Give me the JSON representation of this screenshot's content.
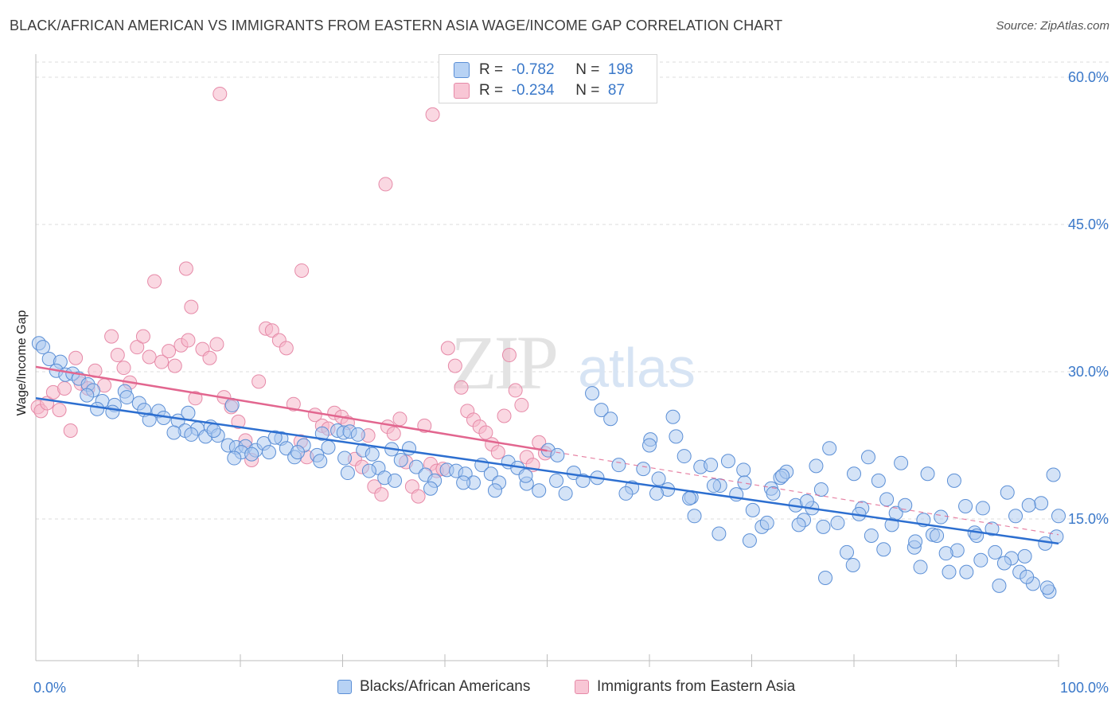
{
  "title": "BLACK/AFRICAN AMERICAN VS IMMIGRANTS FROM EASTERN ASIA WAGE/INCOME GAP CORRELATION CHART",
  "source": "Source: ZipAtlas.com",
  "watermark": {
    "zip": "ZIP",
    "atlas": "atlas"
  },
  "legend_box": {
    "rows": [
      {
        "r_label": "R =",
        "r_value": "-0.782",
        "n_label": "N =",
        "n_value": "198"
      },
      {
        "r_label": "R =",
        "r_value": "-0.234",
        "n_label": "N =",
        "n_value": "87"
      }
    ]
  },
  "bottom_legend": {
    "series1": "Blacks/African Americans",
    "series2": "Immigrants from Eastern Asia"
  },
  "colors": {
    "blue_fill": "#a9c8f0",
    "blue_stroke": "#5b8fd6",
    "blue_line": "#2d6fd0",
    "pink_fill": "#f6b8cb",
    "pink_stroke": "#e68aa8",
    "pink_line": "#e2668f",
    "axis_text_blue": "#3a78c9"
  },
  "chart_data": {
    "type": "scatter",
    "title": "BLACK/AFRICAN AMERICAN VS IMMIGRANTS FROM EASTERN ASIA WAGE/INCOME GAP CORRELATION CHART",
    "xlabel": "",
    "ylabel": "Wage/Income Gap",
    "xlim": [
      0,
      100
    ],
    "ylim": [
      0,
      62
    ],
    "x_tick_labels": [
      "0.0%",
      "100.0%"
    ],
    "y_ticks": [
      15,
      30,
      45,
      60
    ],
    "y_tick_labels": [
      "15.0%",
      "30.0%",
      "45.0%",
      "60.0%"
    ],
    "grid": "horizontal dashed",
    "series": [
      {
        "name": "Blacks/African Americans",
        "r": -0.782,
        "n": 198,
        "trend": {
          "x": [
            0,
            100
          ],
          "y": [
            27.3,
            12.5
          ]
        },
        "points": [
          [
            0.3,
            32.9
          ],
          [
            0.7,
            32.5
          ],
          [
            1.3,
            31.3
          ],
          [
            2.4,
            31.0
          ],
          [
            2.0,
            30.1
          ],
          [
            2.9,
            29.7
          ],
          [
            3.6,
            29.8
          ],
          [
            4.2,
            29.3
          ],
          [
            5.1,
            28.7
          ],
          [
            5.6,
            28.1
          ],
          [
            5.0,
            27.6
          ],
          [
            6.5,
            27.0
          ],
          [
            7.7,
            26.6
          ],
          [
            6.0,
            26.2
          ],
          [
            8.7,
            28.0
          ],
          [
            8.9,
            27.4
          ],
          [
            10.1,
            26.8
          ],
          [
            10.6,
            26.1
          ],
          [
            7.5,
            25.9
          ],
          [
            12.0,
            26.0
          ],
          [
            11.1,
            25.1
          ],
          [
            12.5,
            25.3
          ],
          [
            13.9,
            25.0
          ],
          [
            14.9,
            25.8
          ],
          [
            15.8,
            24.2
          ],
          [
            14.6,
            24.0
          ],
          [
            16.6,
            23.4
          ],
          [
            17.1,
            24.4
          ],
          [
            17.8,
            23.5
          ],
          [
            18.8,
            22.5
          ],
          [
            19.2,
            26.6
          ],
          [
            19.6,
            22.3
          ],
          [
            20.5,
            22.4
          ],
          [
            21.5,
            22.0
          ],
          [
            20.1,
            21.8
          ],
          [
            22.3,
            22.7
          ],
          [
            22.8,
            21.8
          ],
          [
            24.0,
            23.2
          ],
          [
            24.5,
            22.2
          ],
          [
            25.3,
            21.3
          ],
          [
            26.2,
            22.5
          ],
          [
            27.5,
            21.5
          ],
          [
            28.0,
            23.7
          ],
          [
            28.6,
            22.3
          ],
          [
            29.5,
            24.0
          ],
          [
            30.1,
            23.8
          ],
          [
            30.7,
            23.9
          ],
          [
            31.5,
            23.6
          ],
          [
            32.0,
            22.0
          ],
          [
            32.9,
            21.6
          ],
          [
            33.5,
            20.2
          ],
          [
            34.1,
            19.2
          ],
          [
            34.8,
            22.1
          ],
          [
            35.7,
            21.0
          ],
          [
            36.5,
            22.2
          ],
          [
            37.2,
            20.3
          ],
          [
            38.1,
            19.5
          ],
          [
            39.0,
            18.9
          ],
          [
            40.2,
            20.0
          ],
          [
            41.1,
            19.9
          ],
          [
            42.0,
            19.6
          ],
          [
            42.8,
            18.7
          ],
          [
            43.6,
            20.5
          ],
          [
            44.5,
            19.6
          ],
          [
            45.3,
            18.7
          ],
          [
            46.2,
            20.8
          ],
          [
            47.1,
            20.2
          ],
          [
            48.0,
            18.6
          ],
          [
            49.2,
            17.9
          ],
          [
            50.1,
            22.0
          ],
          [
            51.0,
            21.5
          ],
          [
            51.8,
            17.6
          ],
          [
            52.6,
            19.7
          ],
          [
            53.5,
            18.9
          ],
          [
            54.4,
            27.8
          ],
          [
            55.3,
            26.1
          ],
          [
            56.2,
            25.2
          ],
          [
            57.0,
            20.5
          ],
          [
            58.3,
            18.2
          ],
          [
            59.4,
            20.1
          ],
          [
            60.1,
            23.1
          ],
          [
            60.9,
            19.1
          ],
          [
            61.8,
            18.0
          ],
          [
            62.6,
            23.4
          ],
          [
            63.4,
            21.4
          ],
          [
            64.1,
            17.2
          ],
          [
            65.0,
            20.3
          ],
          [
            66.0,
            20.5
          ],
          [
            66.9,
            18.4
          ],
          [
            67.7,
            20.9
          ],
          [
            68.5,
            17.5
          ],
          [
            69.2,
            20.0
          ],
          [
            70.1,
            15.9
          ],
          [
            71.0,
            14.2
          ],
          [
            71.9,
            18.1
          ],
          [
            72.8,
            19.2
          ],
          [
            73.4,
            19.8
          ],
          [
            74.3,
            16.4
          ],
          [
            75.1,
            14.9
          ],
          [
            75.9,
            16.1
          ],
          [
            76.8,
            18.0
          ],
          [
            77.6,
            22.2
          ],
          [
            78.4,
            14.6
          ],
          [
            79.3,
            11.6
          ],
          [
            80.0,
            19.6
          ],
          [
            80.8,
            16.1
          ],
          [
            81.7,
            13.3
          ],
          [
            82.4,
            18.9
          ],
          [
            83.2,
            17.0
          ],
          [
            84.1,
            15.6
          ],
          [
            85.0,
            16.4
          ],
          [
            85.9,
            12.1
          ],
          [
            86.8,
            14.9
          ],
          [
            87.7,
            13.4
          ],
          [
            88.5,
            15.2
          ],
          [
            89.3,
            9.6
          ],
          [
            90.1,
            11.8
          ],
          [
            90.9,
            16.3
          ],
          [
            91.8,
            13.6
          ],
          [
            92.6,
            16.1
          ],
          [
            93.5,
            14.0
          ],
          [
            94.2,
            8.2
          ],
          [
            95.0,
            17.7
          ],
          [
            95.8,
            15.3
          ],
          [
            96.7,
            11.2
          ],
          [
            97.5,
            8.4
          ],
          [
            98.3,
            16.6
          ],
          [
            99.1,
            7.6
          ],
          [
            99.8,
            13.2
          ],
          [
            60.0,
            22.5
          ],
          [
            62.3,
            25.4
          ],
          [
            64.4,
            15.3
          ],
          [
            66.8,
            13.5
          ],
          [
            69.8,
            12.8
          ],
          [
            71.5,
            14.6
          ],
          [
            73.0,
            19.4
          ],
          [
            74.6,
            14.4
          ],
          [
            76.3,
            20.4
          ],
          [
            77.2,
            9.0
          ],
          [
            79.9,
            10.3
          ],
          [
            81.4,
            21.3
          ],
          [
            82.9,
            11.9
          ],
          [
            84.6,
            20.7
          ],
          [
            86.0,
            12.7
          ],
          [
            87.2,
            19.6
          ],
          [
            88.1,
            13.3
          ],
          [
            89.8,
            18.9
          ],
          [
            91.0,
            9.6
          ],
          [
            92.4,
            10.8
          ],
          [
            93.8,
            11.6
          ],
          [
            95.4,
            11.0
          ],
          [
            96.2,
            9.6
          ],
          [
            97.1,
            16.4
          ],
          [
            98.7,
            12.5
          ],
          [
            99.5,
            19.5
          ],
          [
            30.5,
            19.7
          ],
          [
            35.1,
            18.9
          ],
          [
            38.6,
            18.1
          ],
          [
            41.8,
            18.7
          ],
          [
            44.9,
            17.9
          ],
          [
            47.9,
            19.4
          ],
          [
            50.9,
            18.9
          ],
          [
            54.9,
            19.2
          ],
          [
            57.7,
            17.6
          ],
          [
            60.7,
            17.6
          ],
          [
            63.9,
            17.1
          ],
          [
            66.3,
            18.4
          ],
          [
            69.3,
            18.7
          ],
          [
            72.1,
            17.6
          ],
          [
            75.4,
            16.8
          ],
          [
            77.0,
            14.2
          ],
          [
            80.5,
            15.5
          ],
          [
            83.7,
            14.4
          ],
          [
            86.5,
            10.1
          ],
          [
            89.0,
            11.5
          ],
          [
            92.0,
            13.3
          ],
          [
            94.7,
            10.5
          ],
          [
            96.9,
            9.1
          ],
          [
            98.9,
            8.0
          ],
          [
            100.0,
            15.3
          ],
          [
            13.5,
            23.8
          ],
          [
            15.2,
            23.6
          ],
          [
            17.4,
            24.0
          ],
          [
            19.4,
            21.2
          ],
          [
            21.1,
            21.6
          ],
          [
            23.4,
            23.3
          ],
          [
            25.6,
            21.8
          ],
          [
            27.8,
            20.9
          ],
          [
            30.2,
            21.2
          ],
          [
            32.6,
            19.9
          ]
        ]
      },
      {
        "name": "Immigrants from Eastern Asia",
        "r": -0.234,
        "n": 87,
        "trend": {
          "x": [
            0,
            100
          ],
          "y": [
            30.5,
            13.4
          ]
        },
        "points": [
          [
            0.2,
            26.4
          ],
          [
            0.5,
            26.0
          ],
          [
            1.1,
            26.8
          ],
          [
            1.7,
            27.9
          ],
          [
            2.3,
            26.1
          ],
          [
            2.8,
            28.3
          ],
          [
            3.4,
            24.0
          ],
          [
            3.9,
            31.4
          ],
          [
            4.4,
            28.8
          ],
          [
            5.1,
            28.3
          ],
          [
            5.8,
            30.1
          ],
          [
            6.7,
            28.6
          ],
          [
            7.4,
            33.6
          ],
          [
            8.0,
            31.7
          ],
          [
            8.6,
            30.4
          ],
          [
            9.2,
            28.9
          ],
          [
            9.9,
            32.5
          ],
          [
            10.5,
            33.6
          ],
          [
            11.1,
            31.5
          ],
          [
            11.6,
            39.2
          ],
          [
            12.3,
            31.0
          ],
          [
            13.0,
            32.1
          ],
          [
            13.6,
            30.6
          ],
          [
            14.2,
            32.7
          ],
          [
            14.9,
            33.2
          ],
          [
            15.6,
            27.3
          ],
          [
            16.3,
            32.3
          ],
          [
            17.0,
            31.4
          ],
          [
            17.7,
            32.8
          ],
          [
            18.4,
            27.4
          ],
          [
            19.1,
            26.4
          ],
          [
            19.8,
            24.9
          ],
          [
            20.5,
            23.0
          ],
          [
            21.1,
            21.0
          ],
          [
            21.8,
            29.0
          ],
          [
            22.5,
            34.4
          ],
          [
            23.1,
            34.2
          ],
          [
            23.8,
            33.2
          ],
          [
            24.5,
            32.4
          ],
          [
            25.2,
            26.7
          ],
          [
            25.9,
            22.9
          ],
          [
            26.5,
            21.3
          ],
          [
            27.3,
            25.6
          ],
          [
            28.0,
            24.5
          ],
          [
            28.6,
            24.2
          ],
          [
            29.2,
            25.8
          ],
          [
            29.9,
            25.4
          ],
          [
            30.5,
            24.8
          ],
          [
            31.2,
            21.1
          ],
          [
            31.9,
            20.3
          ],
          [
            32.5,
            23.5
          ],
          [
            33.1,
            18.3
          ],
          [
            33.8,
            17.5
          ],
          [
            34.4,
            24.4
          ],
          [
            35.0,
            23.7
          ],
          [
            35.6,
            25.2
          ],
          [
            36.2,
            20.8
          ],
          [
            36.8,
            18.3
          ],
          [
            37.4,
            17.3
          ],
          [
            38.0,
            24.5
          ],
          [
            38.6,
            20.6
          ],
          [
            39.2,
            19.9
          ],
          [
            39.8,
            20.1
          ],
          [
            40.3,
            32.4
          ],
          [
            41.0,
            30.6
          ],
          [
            41.6,
            28.4
          ],
          [
            42.2,
            26.0
          ],
          [
            42.8,
            25.1
          ],
          [
            43.4,
            24.4
          ],
          [
            44.0,
            23.8
          ],
          [
            44.6,
            22.6
          ],
          [
            45.2,
            21.8
          ],
          [
            45.8,
            25.5
          ],
          [
            46.3,
            31.7
          ],
          [
            46.9,
            28.1
          ],
          [
            47.5,
            26.6
          ],
          [
            48.0,
            21.3
          ],
          [
            48.6,
            20.5
          ],
          [
            49.2,
            22.8
          ],
          [
            49.8,
            21.7
          ],
          [
            18.0,
            58.3
          ],
          [
            38.8,
            56.2
          ],
          [
            34.2,
            49.1
          ],
          [
            14.7,
            40.5
          ],
          [
            26.0,
            40.3
          ],
          [
            15.2,
            36.6
          ]
        ]
      }
    ]
  }
}
